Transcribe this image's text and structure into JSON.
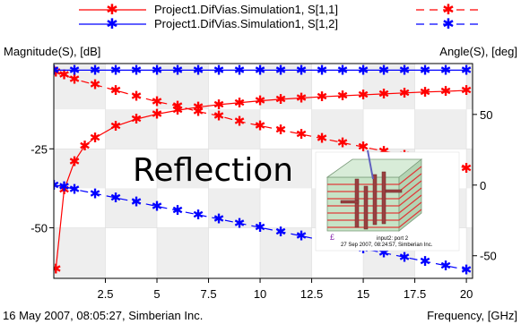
{
  "chart_data": {
    "type": "line",
    "left_axis_label": "Magnitude(S), [dB]",
    "right_axis_label": "Angle(S), [deg]",
    "xlabel": "Frequency, [GHz]",
    "footer_left": "16 May 2007, 08:05:27, Simberian Inc.",
    "annotation": "Reflection",
    "x_ticks": [
      "2.5",
      "5",
      "7.5",
      "10",
      "12.5",
      "15",
      "17.5",
      "20"
    ],
    "left_ticks": [
      "-25",
      "-50"
    ],
    "right_ticks": [
      "50",
      "0",
      "-50"
    ],
    "xlim": [
      0,
      20.3
    ],
    "left_ylim": [
      -66,
      2
    ],
    "right_ylim": [
      -66,
      86
    ],
    "grid": "alternating gray bands",
    "legend_position": "top",
    "series": [
      {
        "name": "Project1.DifVias.Simulation1, S[1,1]",
        "color": "#ff0000",
        "quantity": "magnitude",
        "axis": "left",
        "line_style": "solid",
        "x": [
          0.1,
          0.5,
          1,
          1.5,
          2,
          3,
          4,
          5,
          6,
          7,
          8,
          9,
          10,
          11,
          12,
          13,
          14,
          15,
          16,
          17,
          18,
          19,
          20
        ],
        "y": [
          -63,
          -38,
          -29,
          -24,
          -21.5,
          -17.8,
          -15.6,
          -14,
          -12.8,
          -11.8,
          -11,
          -10.4,
          -9.8,
          -9.3,
          -8.9,
          -8.5,
          -8.2,
          -7.9,
          -7.6,
          -7.3,
          -7,
          -6.8,
          -6.5
        ]
      },
      {
        "name": "Project1.DifVias.Simulation1, S[1,1]",
        "color": "#ff0000",
        "quantity": "angle",
        "axis": "right",
        "line_style": "dashed",
        "x": [
          0.1,
          0.5,
          1,
          2,
          3,
          4,
          5,
          6,
          7,
          8,
          9,
          10,
          11,
          12,
          13,
          14,
          15,
          16,
          17,
          18,
          19,
          20
        ],
        "y": [
          80,
          78,
          75,
          71,
          67,
          63,
          59,
          56,
          52,
          49,
          45,
          42,
          39,
          36,
          33,
          30,
          27,
          24,
          21,
          18,
          15,
          12
        ]
      },
      {
        "name": "Project1.DifVias.Simulation1, S[1,2]",
        "color": "#0000ff",
        "quantity": "magnitude",
        "axis": "left",
        "line_style": "solid",
        "x": [
          0,
          1,
          2,
          3,
          4,
          5,
          6,
          7,
          8,
          9,
          10,
          11,
          12,
          13,
          14,
          15,
          16,
          17,
          18,
          19,
          20
        ],
        "y": [
          -0.1,
          -0.1,
          -0.1,
          -0.1,
          -0.1,
          -0.1,
          -0.1,
          -0.1,
          -0.1,
          -0.1,
          -0.1,
          -0.1,
          -0.1,
          -0.1,
          -0.1,
          -0.1,
          -0.1,
          -0.1,
          -0.1,
          -0.1,
          -0.1
        ]
      },
      {
        "name": "Project1.DifVias.Simulation1, S[1,2]",
        "color": "#0000ff",
        "quantity": "angle",
        "axis": "right",
        "line_style": "dashed",
        "x": [
          0,
          0.5,
          1,
          2,
          3,
          4,
          5,
          6,
          7,
          8,
          9,
          10,
          11,
          12,
          13,
          14,
          15,
          16,
          17,
          18,
          19,
          20
        ],
        "y": [
          0,
          -1,
          -3,
          -6,
          -9,
          -12,
          -15,
          -18,
          -21,
          -24,
          -27,
          -30,
          -33,
          -36,
          -39,
          -42,
          -45,
          -48,
          -51,
          -54,
          -57,
          -60
        ]
      }
    ],
    "legend": [
      {
        "name": "Project1.DifVias.Simulation1, S[1,1]",
        "color": "#ff0000"
      },
      {
        "name": "Project1.DifVias.Simulation1, S[1,2]",
        "color": "#0000ff"
      }
    ],
    "inset": {
      "caption_lines": [
        "input2: port 2",
        "27 Sep 2007, 08:24:57, Simberian Inc."
      ],
      "box_color": "#b9dab9",
      "layer_color": "#e03b3b",
      "via_color": "#9a4040"
    }
  }
}
